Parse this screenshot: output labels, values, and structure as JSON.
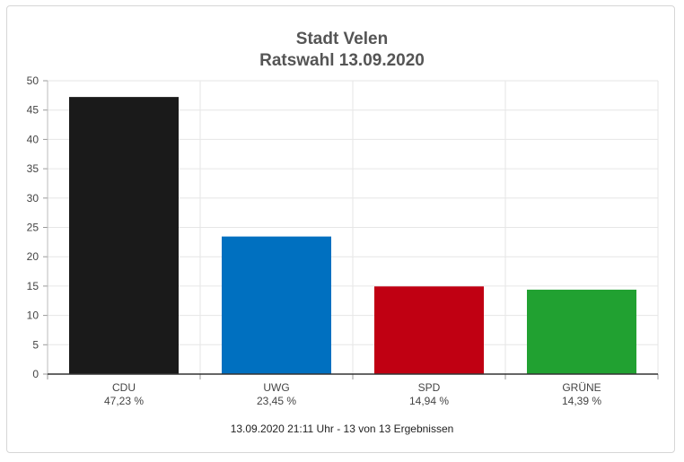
{
  "chart_data": {
    "type": "bar",
    "title": "Stadt Velen",
    "subtitle": "Ratswahl 13.09.2020",
    "categories": [
      "CDU",
      "UWG",
      "SPD",
      "GRÜNE"
    ],
    "values": [
      47.23,
      23.45,
      14.94,
      14.39
    ],
    "value_labels": [
      "47,23 %",
      "23,45 %",
      "14,94 %",
      "14,39 %"
    ],
    "colors": [
      "#1a1a1a",
      "#0070c0",
      "#c00012",
      "#21a131"
    ],
    "ylim": [
      0,
      50
    ],
    "yticks": [
      0,
      5,
      10,
      15,
      20,
      25,
      30,
      35,
      40,
      45,
      50
    ],
    "grid": true,
    "xlabel": "",
    "ylabel": "",
    "footer": "13.09.2020 21:11 Uhr - 13 von 13 Ergebnissen"
  }
}
